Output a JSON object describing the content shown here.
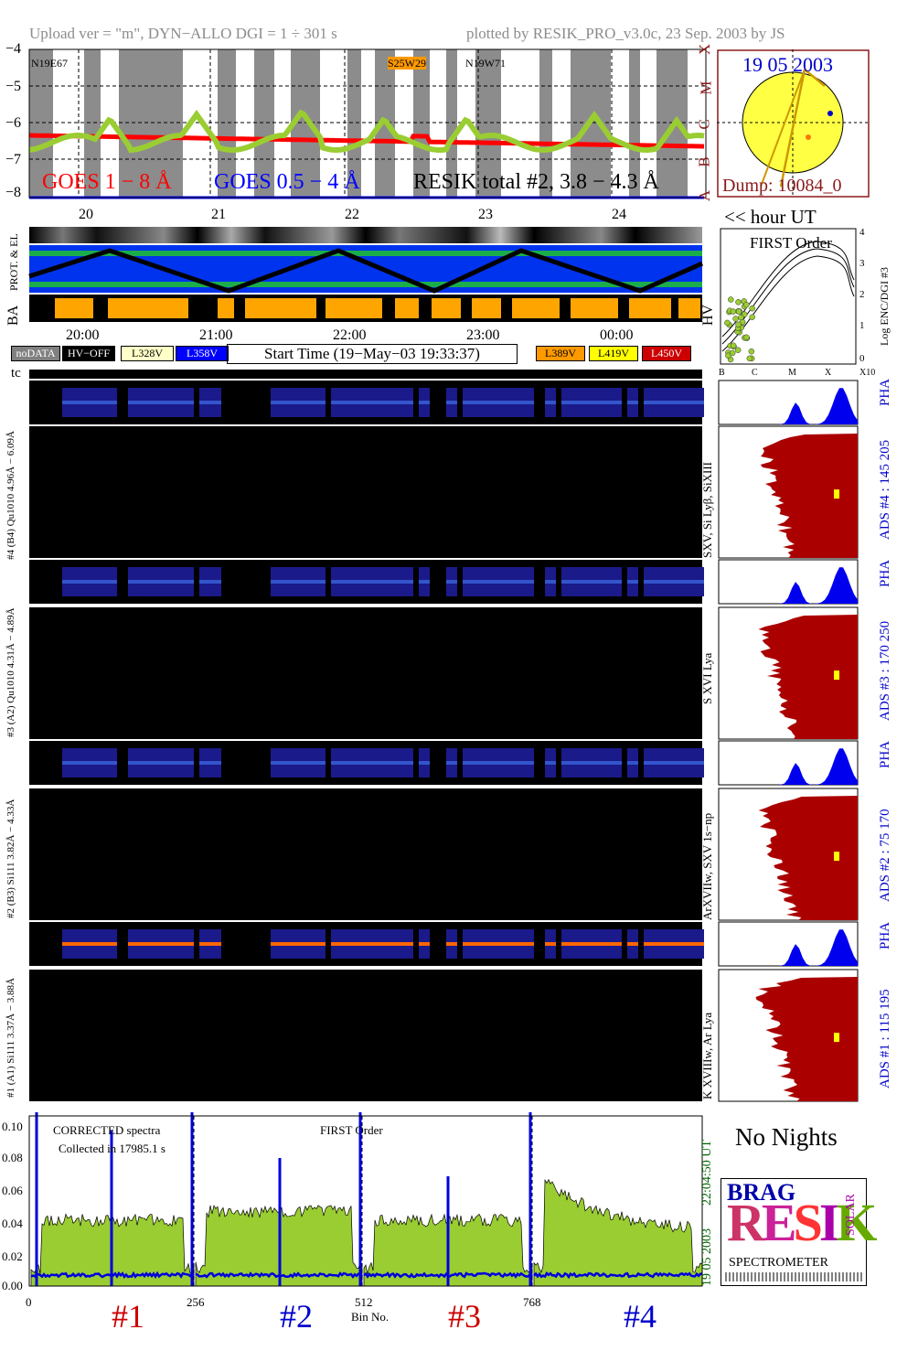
{
  "header": {
    "upload": "Upload ver = \"m\", DYN−ALLO DGI =   1 ÷ 301 s",
    "plotted": "plotted by RESIK_PRO_v3.0c, 23 Sep. 2003 by JS"
  },
  "goes": {
    "yticks": [
      "−4",
      "−5",
      "−6",
      "−7",
      "−8"
    ],
    "class_letters": [
      "X",
      "M",
      "C",
      "B",
      "A"
    ],
    "ar_labels": [
      "N19E67",
      "S25W29",
      "N19W71"
    ],
    "legend_goes_long": "GOES 1 − 8 Å",
    "legend_goes_short": "GOES 0.5 − 4 Å",
    "legend_resik": "RESIK total #2, 3.8 − 4.3 Å",
    "day_ticks": [
      "20",
      "21",
      "22",
      "23",
      "24"
    ],
    "hour_ut": "<< hour UT",
    "colors": {
      "long": "#ff0000",
      "short": "#0000ff",
      "resik": "#9acd32"
    }
  },
  "sun": {
    "date": "19 05 2003",
    "dump": "Dump: 10084_0"
  },
  "side_labels": {
    "prot_el": "PROT. & EL",
    "ba": "BA",
    "hv": "HV",
    "tc": "tc"
  },
  "time_axis": {
    "ticks": [
      "20:00",
      "21:00",
      "22:00",
      "23:00",
      "00:00"
    ],
    "start_time": "Start Time (19−May−03 19:33:37)"
  },
  "hv_legend": [
    {
      "label": "noDATA",
      "bg": "#808080",
      "fg": "#ffffff"
    },
    {
      "label": "HV−OFF",
      "bg": "#000000",
      "fg": "#ffffff"
    },
    {
      "label": "L328V",
      "bg": "#ffffc8",
      "fg": "#000000"
    },
    {
      "label": "L358V",
      "bg": "#0000ff",
      "fg": "#ffffff"
    },
    {
      "label": "L389V",
      "bg": "#ff9900",
      "fg": "#000000"
    },
    {
      "label": "L419V",
      "bg": "#ffff00",
      "fg": "#000000"
    },
    {
      "label": "L450V",
      "bg": "#cc0000",
      "fg": "#ffffff"
    }
  ],
  "first_order": {
    "title": "FIRST Order",
    "ylabel": "Log ENC/DGI #3",
    "yticks": [
      "0",
      "1",
      "2",
      "3",
      "4"
    ],
    "xticks": [
      "B",
      "C",
      "M",
      "X",
      "X10"
    ]
  },
  "channels": [
    {
      "pha_label": "#4 (B4) Qu1010 4.96Å − 6.09Å",
      "spec_label": "SXV, Si Lyβ, SiXIII",
      "ads_label": "ADS #4 :   145 205",
      "pha_word": "PHA"
    },
    {
      "pha_label": "#3 (A2) Qu1010 4.31Å − 4.89Å",
      "spec_label": "S XVI Lya",
      "ads_label": "ADS #3 :   170 250",
      "pha_word": "PHA"
    },
    {
      "pha_label": "#2 (B3) Si111 3.82Å − 4.33Å",
      "spec_label": "ArXVIIw, SXV 1s−np",
      "ads_label": "ADS #2 :   75 170",
      "pha_word": "PHA"
    },
    {
      "pha_label": "#1 (A1) Si111 3.37Å − 3.88Å",
      "spec_label": "K XVIIIw, Ar Lya",
      "ads_label": "ADS #1 :   115 195",
      "pha_word": "PHA"
    }
  ],
  "bottom": {
    "corrected": "CORRECTED spectra",
    "collected": "Collected in 17985.1 s",
    "first_order": "FIRST Order",
    "yticks": [
      "0.10",
      "0.08",
      "0.06",
      "0.04",
      "0.02",
      "0.00"
    ],
    "xticks": [
      "0",
      "256",
      "512",
      "768"
    ],
    "xlabel": "Bin No.",
    "channel_nums": [
      {
        "label": "#1",
        "color": "#cc0000"
      },
      {
        "label": "#2",
        "color": "#0000cc"
      },
      {
        "label": "#3",
        "color": "#cc0000"
      },
      {
        "label": "#4",
        "color": "#0000cc"
      }
    ],
    "right_time": "22:04:50 UT",
    "right_date": "19 05 2003"
  },
  "no_nights": "No Nights",
  "logo": {
    "top": "BRAG SOLAR",
    "main": "RESIK",
    "bottom": "SPECTROMETER"
  }
}
